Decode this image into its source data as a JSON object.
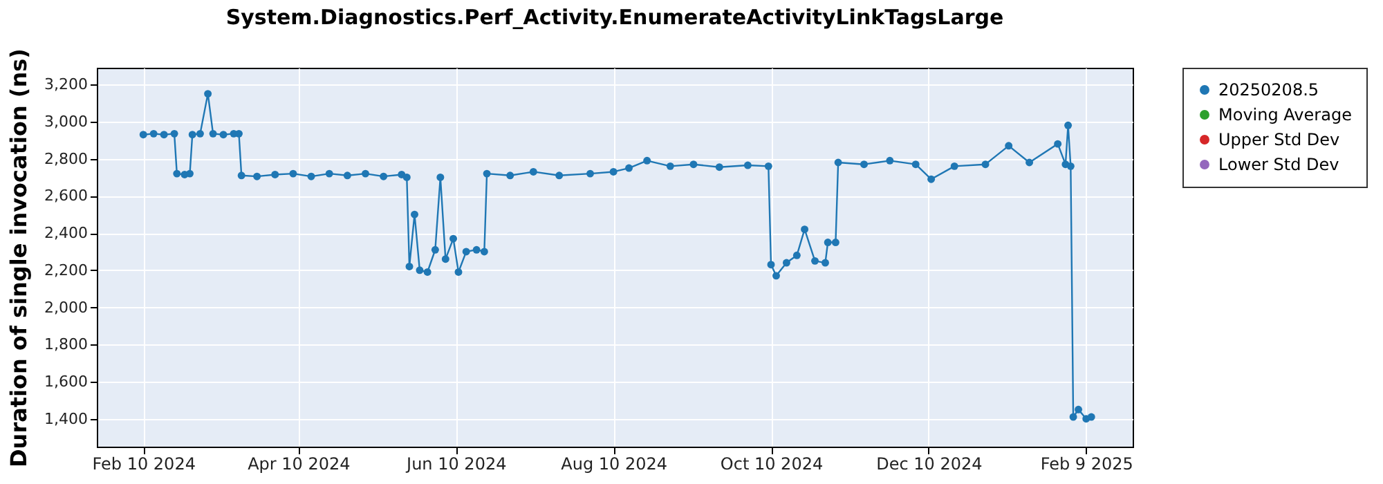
{
  "chart_data": {
    "type": "line",
    "title": "System.Diagnostics.Perf_Activity.EnumerateActivityLinkTagsLarge",
    "ylabel": "Duration of single invocation (ns)",
    "x": [
      "2024-02-10",
      "2024-02-14",
      "2024-02-18",
      "2024-02-22",
      "2024-02-23",
      "2024-02-26",
      "2024-02-28",
      "2024-02-29",
      "2024-03-03",
      "2024-03-06",
      "2024-03-08",
      "2024-03-12",
      "2024-03-16",
      "2024-03-18",
      "2024-03-19",
      "2024-03-25",
      "2024-04-01",
      "2024-04-08",
      "2024-04-15",
      "2024-04-22",
      "2024-04-29",
      "2024-05-06",
      "2024-05-13",
      "2024-05-20",
      "2024-05-22",
      "2024-05-23",
      "2024-05-25",
      "2024-05-27",
      "2024-05-30",
      "2024-06-02",
      "2024-06-04",
      "2024-06-06",
      "2024-06-09",
      "2024-06-11",
      "2024-06-14",
      "2024-06-18",
      "2024-06-21",
      "2024-06-22",
      "2024-07-01",
      "2024-07-10",
      "2024-07-20",
      "2024-08-01",
      "2024-08-10",
      "2024-08-16",
      "2024-08-23",
      "2024-09-01",
      "2024-09-10",
      "2024-09-20",
      "2024-10-01",
      "2024-10-09",
      "2024-10-10",
      "2024-10-12",
      "2024-10-16",
      "2024-10-20",
      "2024-10-23",
      "2024-10-27",
      "2024-10-31",
      "2024-11-01",
      "2024-11-04",
      "2024-11-05",
      "2024-11-15",
      "2024-11-25",
      "2024-12-05",
      "2024-12-11",
      "2024-12-20",
      "2025-01-01",
      "2025-01-10",
      "2025-01-18",
      "2025-01-29",
      "2025-02-01",
      "2025-02-02",
      "2025-02-03",
      "2025-02-04",
      "2025-02-06",
      "2025-02-09",
      "2025-02-11"
    ],
    "series": [
      {
        "name": "20250208.5",
        "color": "#1f77b4",
        "values": [
          2930,
          2935,
          2930,
          2935,
          2720,
          2715,
          2720,
          2930,
          2935,
          3150,
          2935,
          2930,
          2935,
          2935,
          2710,
          2705,
          2715,
          2720,
          2705,
          2720,
          2710,
          2720,
          2705,
          2715,
          2700,
          2220,
          2500,
          2200,
          2190,
          2310,
          2700,
          2260,
          2370,
          2190,
          2300,
          2310,
          2300,
          2720,
          2710,
          2730,
          2710,
          2720,
          2730,
          2750,
          2790,
          2760,
          2770,
          2755,
          2765,
          2760,
          2230,
          2170,
          2240,
          2280,
          2420,
          2250,
          2240,
          2350,
          2350,
          2780,
          2770,
          2790,
          2770,
          2690,
          2760,
          2770,
          2870,
          2780,
          2880,
          2770,
          2980,
          2760,
          1410,
          1450,
          1400,
          1410
        ]
      },
      {
        "name": "Moving Average",
        "color": "#2ca02c",
        "values": [
          null,
          null,
          null,
          null,
          null,
          null,
          null,
          null,
          null,
          null,
          null,
          null,
          null,
          null,
          null,
          null,
          null,
          null,
          null,
          null,
          null,
          null,
          null,
          null,
          null,
          null,
          null,
          null,
          null,
          null,
          null,
          null,
          null,
          null,
          null,
          null,
          null,
          null,
          null,
          null,
          null,
          null,
          null,
          null,
          null,
          null,
          null,
          null,
          null,
          null,
          null,
          null,
          null,
          null,
          null,
          null,
          null,
          null,
          null,
          null,
          null,
          null,
          null,
          null,
          null,
          null,
          null,
          null,
          null,
          null,
          null,
          null,
          null,
          null,
          null,
          null
        ]
      },
      {
        "name": "Upper Std Dev",
        "color": "#d62728",
        "values": [
          null,
          null,
          null,
          null,
          null,
          null,
          null,
          null,
          null,
          null,
          null,
          null,
          null,
          null,
          null,
          null,
          null,
          null,
          null,
          null,
          null,
          null,
          null,
          null,
          null,
          null,
          null,
          null,
          null,
          null,
          null,
          null,
          null,
          null,
          null,
          null,
          null,
          null,
          null,
          null,
          null,
          null,
          null,
          null,
          null,
          null,
          null,
          null,
          null,
          null,
          null,
          null,
          null,
          null,
          null,
          null,
          null,
          null,
          null,
          null,
          null,
          null,
          null,
          null,
          null,
          null,
          null,
          null,
          null,
          null,
          null,
          null,
          null,
          null,
          null,
          null
        ]
      },
      {
        "name": "Lower Std Dev",
        "color": "#9467bd",
        "values": [
          null,
          null,
          null,
          null,
          null,
          null,
          null,
          null,
          null,
          null,
          null,
          null,
          null,
          null,
          null,
          null,
          null,
          null,
          null,
          null,
          null,
          null,
          null,
          null,
          null,
          null,
          null,
          null,
          null,
          null,
          null,
          null,
          null,
          null,
          null,
          null,
          null,
          null,
          null,
          null,
          null,
          null,
          null,
          null,
          null,
          null,
          null,
          null,
          null,
          null,
          null,
          null,
          null,
          null,
          null,
          null,
          null,
          null,
          null,
          null,
          null,
          null,
          null,
          null,
          null,
          null,
          null,
          null,
          null,
          null,
          null,
          null,
          null,
          null,
          null,
          null
        ]
      }
    ],
    "xlim": [
      "2024-01-23",
      "2025-02-27"
    ],
    "xticks": [
      {
        "value": "2024-02-10",
        "label": "Feb 10 2024"
      },
      {
        "value": "2024-04-10",
        "label": "Apr 10 2024"
      },
      {
        "value": "2024-06-10",
        "label": "Jun 10 2024"
      },
      {
        "value": "2024-08-10",
        "label": "Aug 10 2024"
      },
      {
        "value": "2024-10-10",
        "label": "Oct 10 2024"
      },
      {
        "value": "2024-12-10",
        "label": "Dec 10 2024"
      },
      {
        "value": "2025-02-09",
        "label": "Feb 9 2025"
      }
    ],
    "ylim": [
      1250,
      3290
    ],
    "yticks": [
      {
        "value": 1400,
        "label": "1,400"
      },
      {
        "value": 1600,
        "label": "1,600"
      },
      {
        "value": 1800,
        "label": "1,800"
      },
      {
        "value": 2000,
        "label": "2,000"
      },
      {
        "value": 2200,
        "label": "2,200"
      },
      {
        "value": 2400,
        "label": "2,400"
      },
      {
        "value": 2600,
        "label": "2,600"
      },
      {
        "value": 2800,
        "label": "2,800"
      },
      {
        "value": 3000,
        "label": "3,000"
      },
      {
        "value": 3200,
        "label": "3,200"
      }
    ],
    "grid": true,
    "legend": "right",
    "marker": "circle",
    "line_style": "solid"
  }
}
